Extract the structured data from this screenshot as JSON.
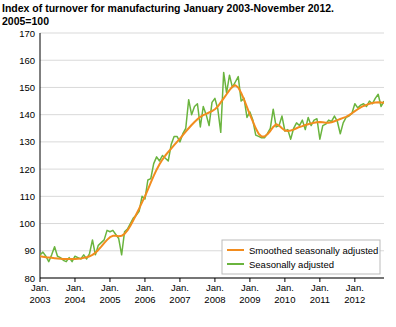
{
  "chart_data": {
    "type": "line",
    "title": "Index of turnover for manufacturing January 2003-November 2012.",
    "subtitle": "2005=100",
    "categories": [
      "Jan. 2003",
      null,
      null,
      null,
      null,
      null,
      null,
      null,
      null,
      null,
      null,
      null,
      "Jan. 2004",
      null,
      null,
      null,
      null,
      null,
      null,
      null,
      null,
      null,
      null,
      null,
      "Jan. 2005",
      null,
      null,
      null,
      null,
      null,
      null,
      null,
      null,
      null,
      null,
      null,
      "Jan. 2006",
      null,
      null,
      null,
      null,
      null,
      null,
      null,
      null,
      null,
      null,
      null,
      "Jan. 2007",
      null,
      null,
      null,
      null,
      null,
      null,
      null,
      null,
      null,
      null,
      null,
      "Jan. 2008",
      null,
      null,
      null,
      null,
      null,
      null,
      null,
      null,
      null,
      null,
      null,
      "Jan. 2009",
      null,
      null,
      null,
      null,
      null,
      null,
      null,
      null,
      null,
      null,
      null,
      "Jan. 2010",
      null,
      null,
      null,
      null,
      null,
      null,
      null,
      null,
      null,
      null,
      null,
      "Jan. 2011",
      null,
      null,
      null,
      null,
      null,
      null,
      null,
      null,
      null,
      null,
      null,
      "Jan. 2012",
      null,
      null,
      null,
      null,
      null,
      null,
      null,
      null,
      null,
      null
    ],
    "series": [
      {
        "name": "Smoothed seasonally adjusted",
        "color": "#f28c1e",
        "values": [
          88.0,
          87.8,
          87.6,
          87.5,
          87.4,
          87.3,
          87.2,
          87.1,
          87.0,
          87.0,
          87.0,
          87.0,
          87.0,
          87.1,
          87.2,
          87.4,
          87.6,
          88.0,
          88.5,
          89.3,
          90.3,
          91.5,
          92.8,
          94.0,
          95.0,
          95.5,
          95.5,
          95.3,
          95.5,
          96.2,
          97.5,
          99.2,
          101.2,
          103.3,
          105.5,
          107.8,
          110.0,
          112.5,
          115.0,
          117.5,
          119.8,
          121.8,
          123.5,
          125.0,
          126.3,
          127.5,
          128.8,
          130.0,
          131.2,
          132.5,
          133.8,
          135.0,
          136.2,
          137.3,
          138.3,
          139.2,
          139.8,
          140.3,
          140.8,
          141.3,
          142.0,
          143.0,
          144.5,
          146.0,
          147.5,
          149.0,
          150.3,
          150.8,
          150.0,
          148.0,
          145.5,
          142.8,
          140.0,
          137.5,
          135.0,
          133.0,
          132.0,
          132.0,
          132.8,
          134.0,
          135.5,
          136.5,
          136.0,
          135.0,
          134.2,
          134.0,
          134.2,
          134.5,
          135.0,
          135.5,
          135.8,
          136.2,
          136.5,
          136.8,
          137.0,
          137.2,
          137.3,
          137.2,
          137.0,
          137.0,
          137.2,
          137.6,
          138.0,
          138.4,
          138.8,
          139.2,
          139.8,
          140.5,
          141.3,
          142.0,
          142.7,
          143.2,
          143.6,
          144.0,
          144.3,
          144.5,
          144.6,
          144.5,
          144.4
        ]
      },
      {
        "name": "Seasonally adjusted",
        "color": "#6ab43e",
        "values": [
          88.5,
          89.5,
          88.0,
          86.0,
          88.5,
          91.5,
          88.0,
          87.5,
          86.5,
          86.0,
          87.5,
          86.0,
          88.0,
          87.5,
          87.0,
          88.5,
          87.0,
          89.0,
          94.0,
          88.5,
          92.0,
          93.0,
          94.0,
          97.5,
          97.0,
          97.5,
          96.0,
          94.5,
          88.5,
          97.0,
          98.0,
          100.0,
          102.0,
          103.0,
          104.5,
          110.0,
          109.0,
          116.0,
          116.5,
          122.0,
          124.5,
          123.0,
          125.0,
          124.0,
          123.0,
          129.0,
          132.0,
          132.0,
          130.0,
          133.0,
          135.0,
          145.5,
          140.0,
          143.0,
          144.0,
          135.5,
          143.0,
          140.0,
          136.0,
          144.5,
          146.0,
          142.0,
          133.5,
          155.5,
          148.0,
          154.5,
          150.0,
          152.0,
          154.0,
          145.0,
          146.0,
          139.0,
          141.0,
          138.0,
          132.5,
          132.0,
          131.5,
          131.5,
          133.0,
          135.0,
          142.0,
          135.5,
          136.0,
          139.5,
          134.0,
          134.5,
          131.0,
          135.0,
          137.0,
          136.0,
          138.0,
          134.5,
          139.0,
          136.0,
          138.0,
          138.5,
          131.0,
          136.0,
          136.5,
          138.0,
          137.5,
          139.5,
          137.5,
          133.0,
          137.0,
          139.0,
          139.5,
          140.5,
          144.0,
          142.5,
          143.5,
          144.0,
          143.0,
          145.0,
          144.0,
          146.0,
          147.5,
          143.0,
          145.0
        ]
      }
    ],
    "ylim": [
      80,
      170
    ],
    "yticks": [
      80,
      90,
      100,
      110,
      120,
      130,
      140,
      150,
      160,
      170
    ],
    "grid": true,
    "legend": "bottom right"
  }
}
